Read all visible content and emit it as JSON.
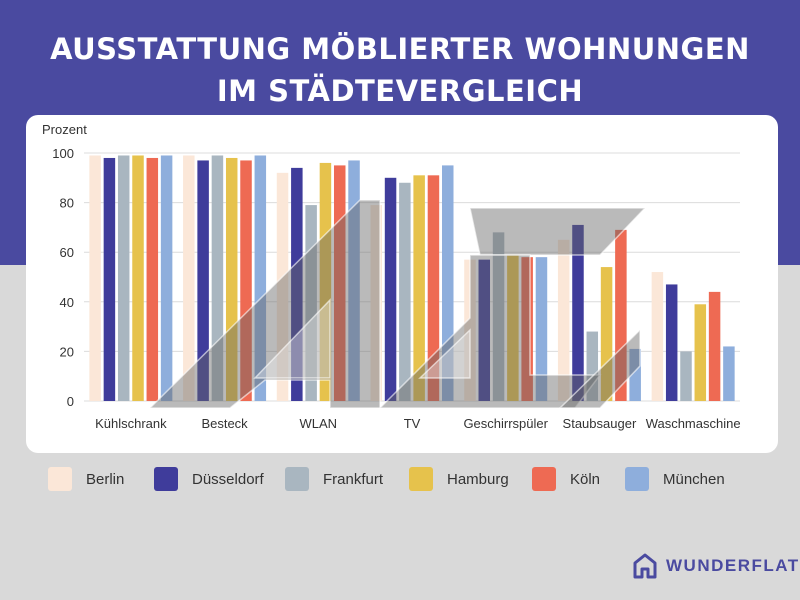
{
  "header": {
    "title_line1": "AUSSTATTUNG MÖBLIERTER WOHNUNGEN",
    "title_line2": "IM STÄDTEVERGLEICH"
  },
  "chart_data": {
    "type": "bar",
    "ylabel": "Prozent",
    "ylim": [
      0,
      100
    ],
    "yticks": [
      0,
      20,
      40,
      60,
      80,
      100
    ],
    "grid": true,
    "legend_position": "bottom",
    "categories": [
      "Kühlschrank",
      "Besteck",
      "WLAN",
      "TV",
      "Geschirrspüler",
      "Staubsauger",
      "Waschmaschine"
    ],
    "series": [
      {
        "name": "Berlin",
        "color": "#fbe7d8",
        "values": [
          99,
          99,
          92,
          79,
          57,
          65,
          52
        ]
      },
      {
        "name": "Düsseldorf",
        "color": "#3f3c9b",
        "values": [
          98,
          97,
          94,
          90,
          57,
          71,
          47
        ]
      },
      {
        "name": "Frankfurt",
        "color": "#a9b6c0",
        "values": [
          99,
          99,
          79,
          88,
          68,
          28,
          20
        ]
      },
      {
        "name": "Hamburg",
        "color": "#e6c24c",
        "values": [
          99,
          98,
          96,
          91,
          59,
          54,
          39
        ]
      },
      {
        "name": "Köln",
        "color": "#ee6a53",
        "values": [
          98,
          97,
          95,
          91,
          58,
          69,
          44
        ]
      },
      {
        "name": "München",
        "color": "#8eaedc",
        "values": [
          99,
          99,
          97,
          95,
          58,
          21,
          22
        ]
      }
    ]
  },
  "logo": {
    "text": "WUNDERFLATS",
    "color": "#4a4aa0"
  }
}
